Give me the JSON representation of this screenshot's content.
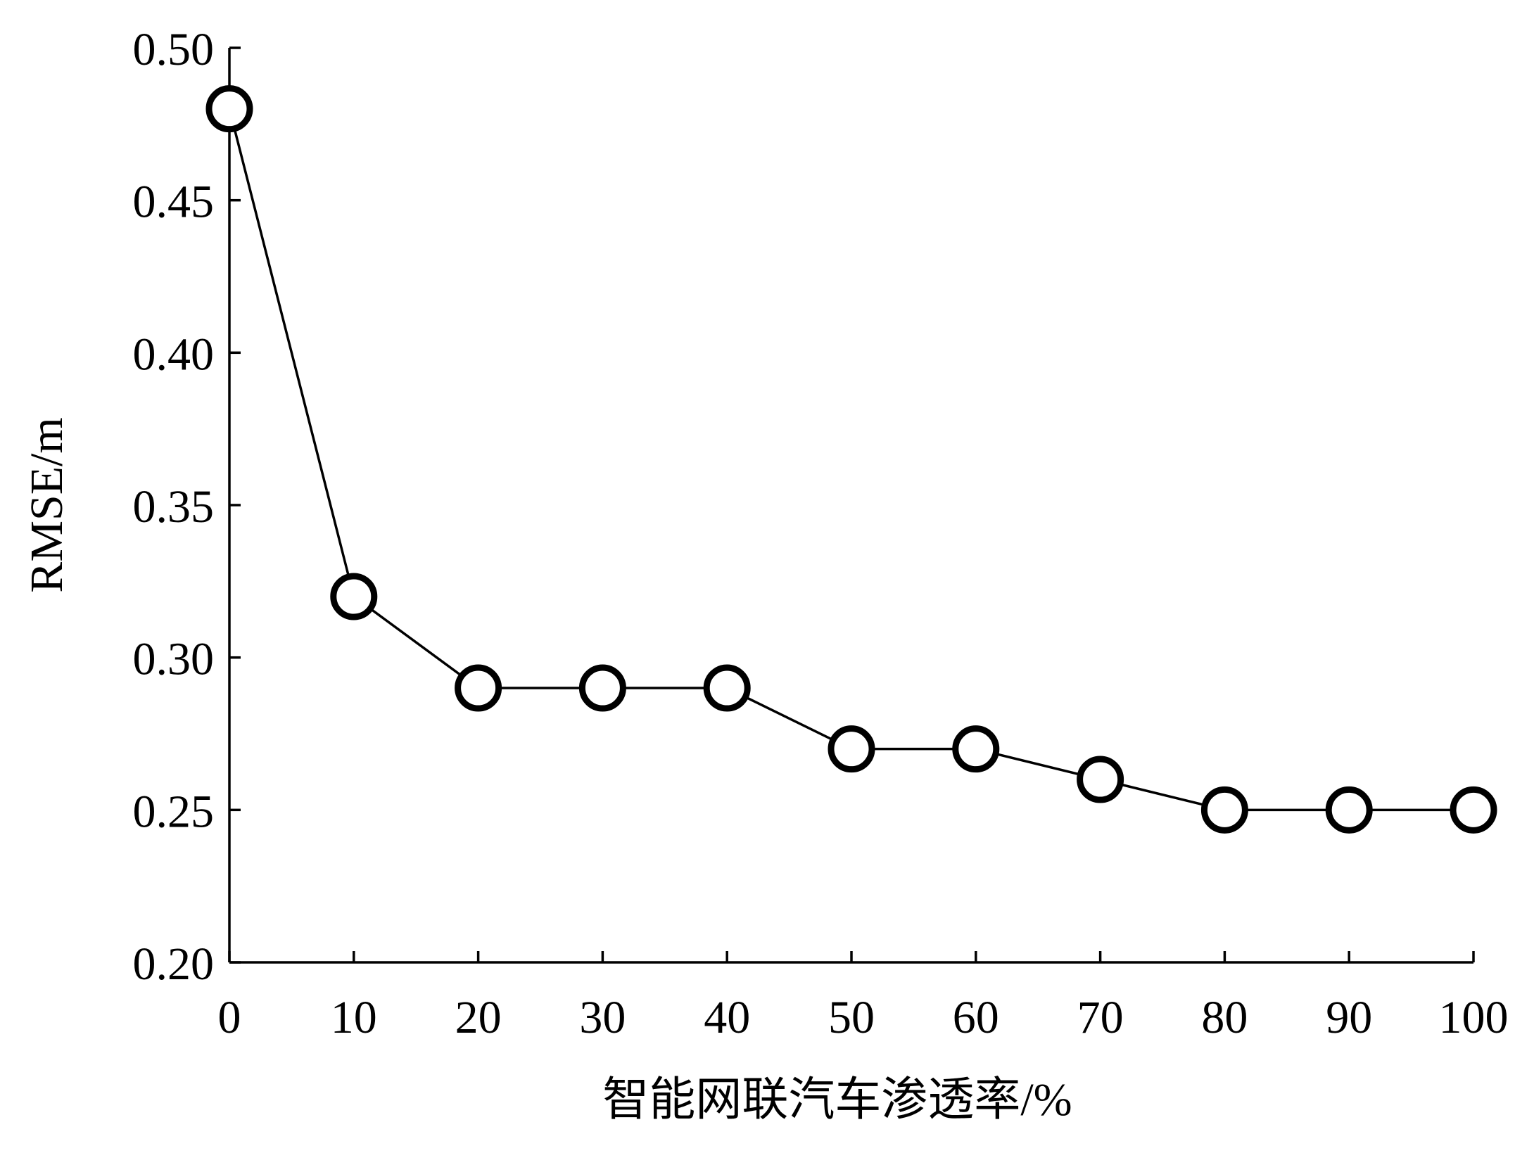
{
  "chart_data": {
    "type": "line",
    "title": "",
    "xlabel": "智能网联汽车渗透率/%",
    "ylabel": "RMSE/m",
    "xlim": [
      0,
      100
    ],
    "ylim": [
      0.2,
      0.5
    ],
    "xticks": [
      "0",
      "10",
      "20",
      "30",
      "40",
      "50",
      "60",
      "70",
      "80",
      "90",
      "100"
    ],
    "yticks": [
      "0.20",
      "0.25",
      "0.30",
      "0.35",
      "0.40",
      "0.45",
      "0.50"
    ],
    "grid": false,
    "marker": "circle-open",
    "series": [
      {
        "x": [
          0,
          10,
          20,
          30,
          40,
          50,
          60,
          70,
          80,
          90,
          100
        ],
        "y": [
          0.48,
          0.32,
          0.29,
          0.29,
          0.29,
          0.27,
          0.27,
          0.26,
          0.25,
          0.25,
          0.25
        ]
      }
    ]
  }
}
